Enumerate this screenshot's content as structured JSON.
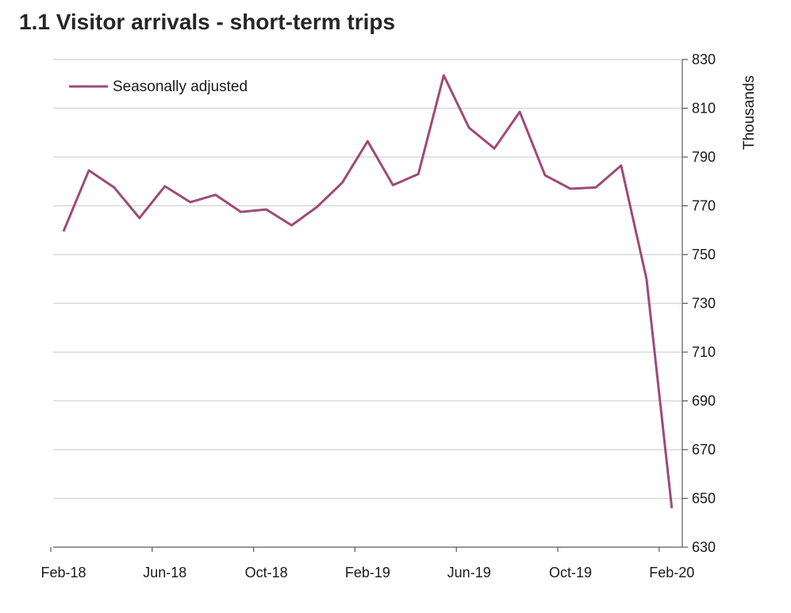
{
  "chart_data": {
    "type": "line",
    "title": "1.1 Visitor arrivals - short-term trips",
    "ylabel": "Thousands",
    "xlabel": "",
    "ylim": [
      630,
      830
    ],
    "y_ticks": [
      630,
      650,
      670,
      690,
      710,
      730,
      750,
      770,
      790,
      810,
      830
    ],
    "x_tick_labels": [
      "Feb-18",
      "Jun-18",
      "Oct-18",
      "Feb-19",
      "Jun-19",
      "Oct-19",
      "Feb-20"
    ],
    "x": [
      "Feb-18",
      "Mar-18",
      "Apr-18",
      "May-18",
      "Jun-18",
      "Jul-18",
      "Aug-18",
      "Sep-18",
      "Oct-18",
      "Nov-18",
      "Dec-18",
      "Jan-19",
      "Feb-19",
      "Mar-19",
      "Apr-19",
      "May-19",
      "Jun-19",
      "Jul-19",
      "Aug-19",
      "Sep-19",
      "Oct-19",
      "Nov-19",
      "Dec-19",
      "Jan-20",
      "Feb-20"
    ],
    "series": [
      {
        "name": "Seasonally adjusted",
        "color": "#9e4a7a",
        "values": [
          759.5,
          784.5,
          777.5,
          765,
          778,
          771.5,
          774.5,
          767.5,
          768.5,
          762,
          769.5,
          779.5,
          796.5,
          778.5,
          783,
          823.5,
          802,
          793.5,
          808.5,
          782.5,
          777,
          777.5,
          786.5,
          740,
          646
        ]
      }
    ],
    "grid": true,
    "legend_position": "top-left",
    "y_axis_side": "right"
  }
}
